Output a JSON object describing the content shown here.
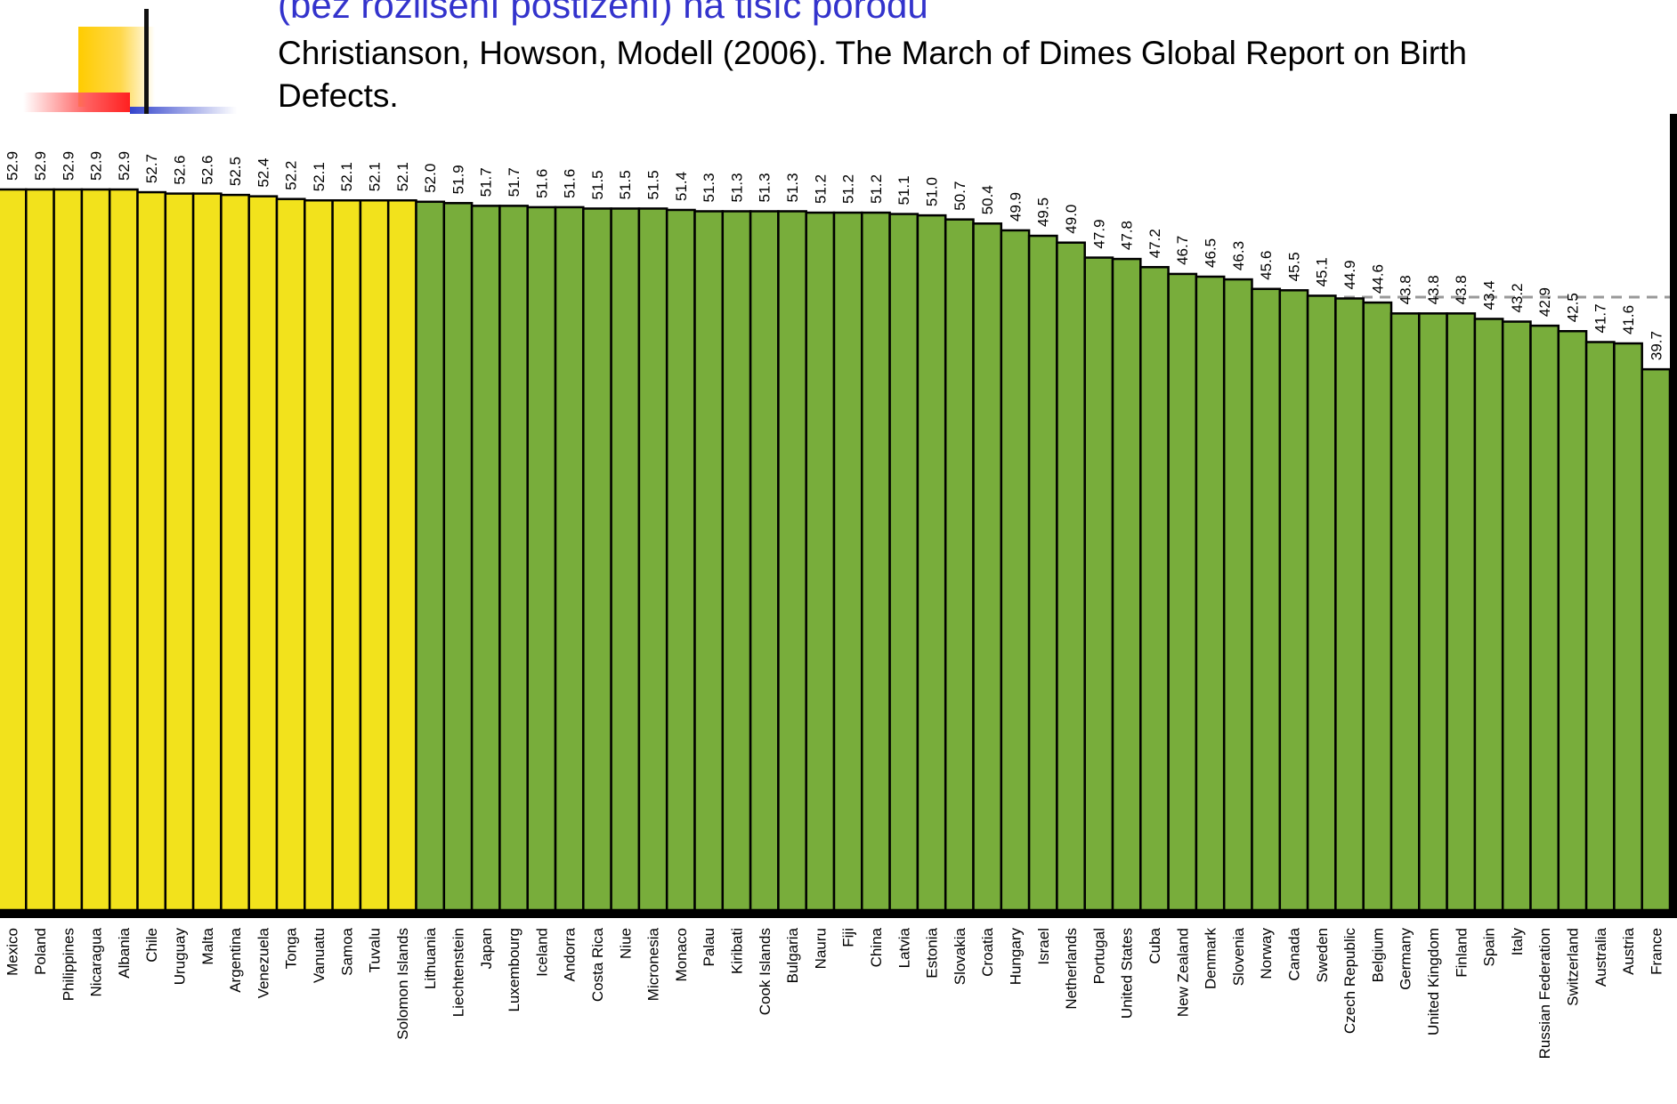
{
  "slide": {
    "title": "(bez rozlišení postižení) na tisíc porodů",
    "source": "Christianson, Howson, Modell (2006). The March of Dimes Global Report on Birth Defects."
  },
  "colors": {
    "highlight": "#f2e21c",
    "bar": "#78ad3b",
    "title": "#3333cc",
    "reference_line": "#999999"
  },
  "chart_data": {
    "type": "bar",
    "title": "",
    "xlabel": "",
    "ylabel": "",
    "categories": [
      "Mexico",
      "Poland",
      "Philippines",
      "Nicaragua",
      "Albania",
      "Chile",
      "Uruguay",
      "Malta",
      "Argentina",
      "Venezuela",
      "Tonga",
      "Vanuatu",
      "Samoa",
      "Tuvalu",
      "Solomon Islands",
      "Lithuania",
      "Liechtenstein",
      "Japan",
      "Luxembourg",
      "Iceland",
      "Andorra",
      "Costa Rica",
      "Niue",
      "Micronesia",
      "Monaco",
      "Palau",
      "Kiribati",
      "Cook Islands",
      "Bulgaria",
      "Nauru",
      "Fiji",
      "China",
      "Latvia",
      "Estonia",
      "Slovakia",
      "Croatia",
      "Hungary",
      "Israel",
      "Netherlands",
      "Portugal",
      "United States",
      "Cuba",
      "New Zealand",
      "Denmark",
      "Slovenia",
      "Norway",
      "Canada",
      "Sweden",
      "Czech Republic",
      "Belgium",
      "Germany",
      "United Kingdom",
      "Finland",
      "Spain",
      "Italy",
      "Russian Federation",
      "Switzerland",
      "Australia",
      "Austria",
      "France"
    ],
    "values": [
      52.9,
      52.9,
      52.9,
      52.9,
      52.9,
      52.7,
      52.6,
      52.6,
      52.5,
      52.4,
      52.2,
      52.1,
      52.1,
      52.1,
      52.1,
      52.0,
      51.9,
      51.7,
      51.7,
      51.6,
      51.6,
      51.5,
      51.5,
      51.5,
      51.4,
      51.3,
      51.3,
      51.3,
      51.3,
      51.2,
      51.2,
      51.2,
      51.1,
      51.0,
      50.7,
      50.4,
      49.9,
      49.5,
      49.0,
      47.9,
      47.8,
      47.2,
      46.7,
      46.5,
      46.3,
      45.6,
      45.5,
      45.1,
      44.9,
      44.6,
      43.8,
      43.8,
      43.8,
      43.4,
      43.2,
      42.9,
      42.5,
      41.7,
      41.6,
      39.7
    ],
    "highlighted_count": 15,
    "reference_value": 45.0,
    "ylim": [
      0,
      55
    ],
    "grid": false,
    "legend": "none"
  }
}
